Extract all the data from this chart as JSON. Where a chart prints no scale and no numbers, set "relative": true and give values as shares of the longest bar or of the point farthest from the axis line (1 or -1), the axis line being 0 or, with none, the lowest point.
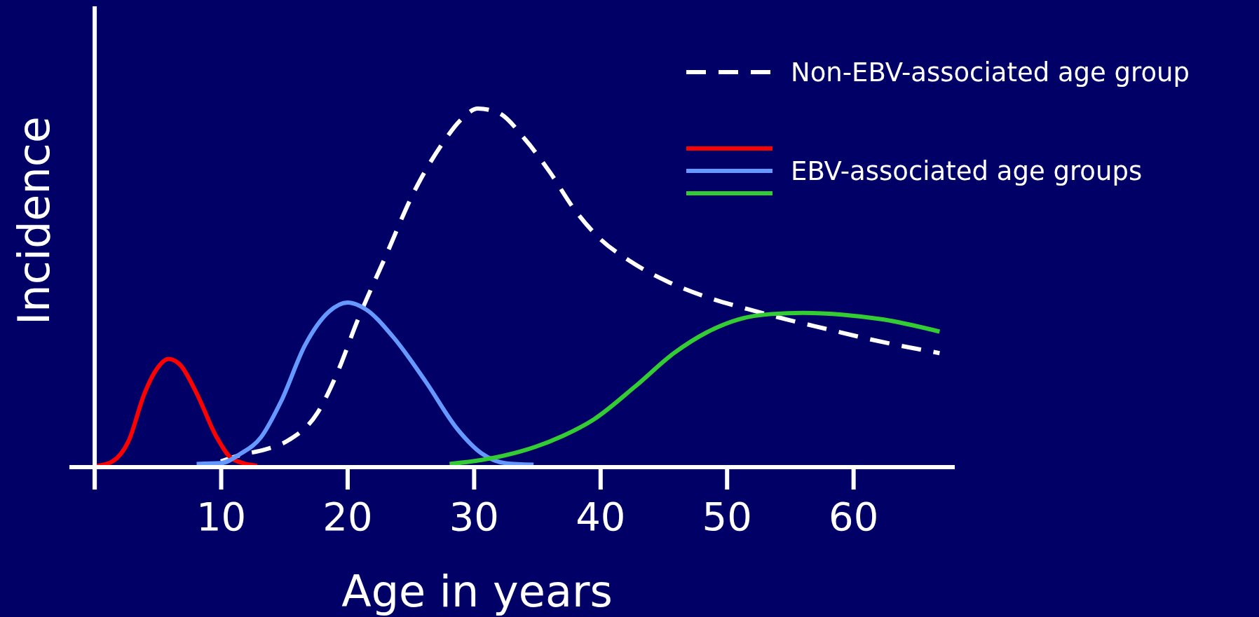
{
  "chart_data": {
    "type": "line",
    "relative": true,
    "xlabel": "Age in years",
    "ylabel": "Incidence",
    "xlim": [
      -2,
      68
    ],
    "xticks": [
      {
        "value": 0,
        "label": null
      },
      10,
      20,
      30,
      40,
      50,
      60
    ],
    "legend": "top right",
    "series": [
      {
        "name": "Non-EBV-associated age group",
        "color": "#ffffff",
        "line_style": "dashed",
        "x": [
          9.97,
          11.56,
          13.46,
          15.37,
          17.59,
          19.17,
          20.76,
          22.98,
          25.21,
          27.43,
          29.02,
          30.29,
          31.87,
          34.1,
          36.0,
          37.9,
          39.8,
          42.3,
          45.2,
          48.4,
          51.6,
          54.7,
          57.9,
          61.1,
          66.8
        ],
        "values": [
          0.016,
          0.034,
          0.049,
          0.076,
          0.15,
          0.262,
          0.407,
          0.586,
          0.765,
          0.899,
          0.971,
          1.0,
          0.989,
          0.911,
          0.822,
          0.72,
          0.642,
          0.575,
          0.519,
          0.474,
          0.441,
          0.412,
          0.385,
          0.358,
          0.318
        ]
      },
      {
        "color": "#ff0000",
        "line_style": "solid",
        "x": [
          0.13,
          1.4,
          2.67,
          3.94,
          4.89,
          5.84,
          6.79,
          8.06,
          9.65,
          10.92,
          12.83
        ],
        "values": [
          0.003,
          0.016,
          0.072,
          0.206,
          0.273,
          0.302,
          0.284,
          0.206,
          0.083,
          0.022,
          0.004
        ]
      },
      {
        "name": "EBV-associated age groups",
        "color": "#6699ff",
        "line_style": "solid",
        "x": [
          8.06,
          9.97,
          11.56,
          13.14,
          14.73,
          16.63,
          18.54,
          20.0,
          21.4,
          23.62,
          26.16,
          28.7,
          30.6,
          32.5,
          34.7
        ],
        "values": [
          0.009,
          0.011,
          0.038,
          0.083,
          0.183,
          0.34,
          0.434,
          0.459,
          0.441,
          0.362,
          0.239,
          0.105,
          0.038,
          0.011,
          0.007
        ]
      },
      {
        "color": "#33cc33",
        "line_style": "solid",
        "x": [
          28.06,
          30.6,
          33.8,
          37.0,
          39.5,
          42.7,
          45.8,
          48.4,
          50.9,
          53.5,
          56.0,
          59.2,
          62.3,
          66.8
        ],
        "values": [
          0.009,
          0.02,
          0.045,
          0.087,
          0.134,
          0.224,
          0.318,
          0.376,
          0.412,
          0.427,
          0.43,
          0.425,
          0.412,
          0.378
        ]
      }
    ]
  }
}
